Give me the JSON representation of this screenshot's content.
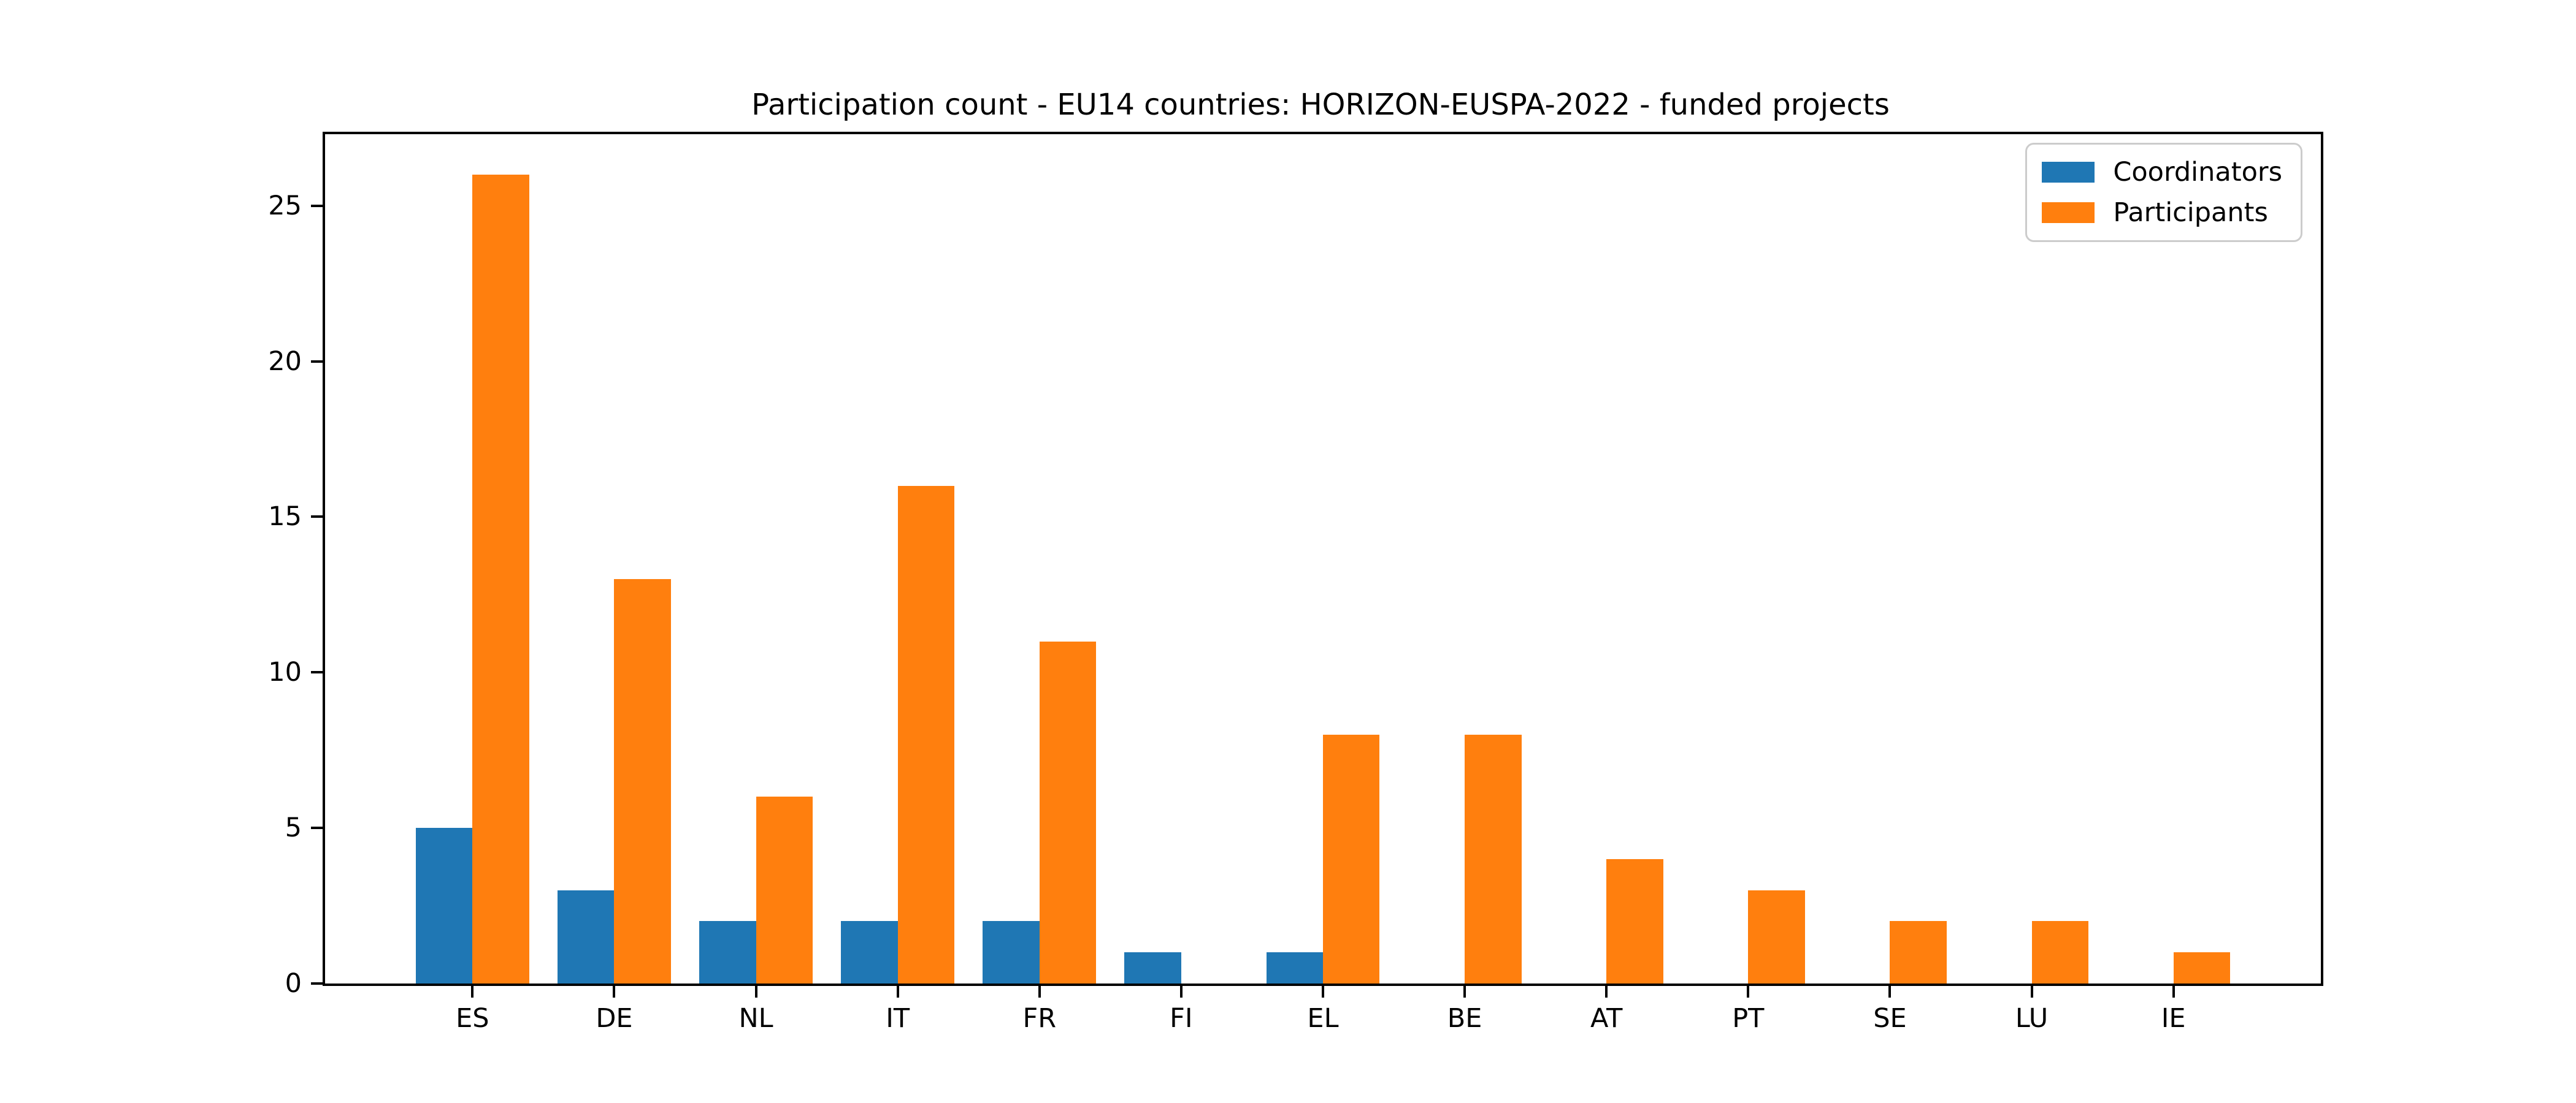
{
  "figure": {
    "background_color": "#ffffff",
    "text_color": "#000000",
    "spine_color": "#000000",
    "legend_border_color": "#cccccc"
  },
  "chart_data": {
    "type": "bar",
    "title": "Participation count - EU14 countries: HORIZON-EUSPA-2022 - funded projects",
    "xlabel": "",
    "ylabel": "",
    "categories": [
      "ES",
      "DE",
      "NL",
      "IT",
      "FR",
      "FI",
      "EL",
      "BE",
      "AT",
      "PT",
      "SE",
      "LU",
      "IE"
    ],
    "series": [
      {
        "name": "Coordinators",
        "color": "#1f77b4",
        "values": [
          5,
          3,
          2,
          2,
          2,
          1,
          1,
          0,
          0,
          0,
          0,
          0,
          0
        ]
      },
      {
        "name": "Participants",
        "color": "#ff7f0e",
        "values": [
          26,
          13,
          6,
          16,
          11,
          0,
          8,
          8,
          4,
          3,
          2,
          2,
          1
        ]
      }
    ],
    "yticks": [
      0,
      5,
      10,
      15,
      20,
      25
    ],
    "ylim": [
      0,
      27.3
    ],
    "xlim": [
      -1.04,
      13.04
    ],
    "bar_width": 0.4,
    "grid": false,
    "legend_position": "upper right"
  }
}
